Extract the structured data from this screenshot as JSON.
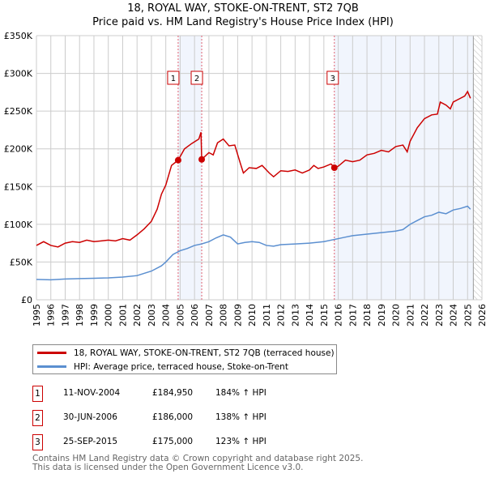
{
  "chart_data": {
    "type": "line",
    "title": "18, ROYAL WAY, STOKE-ON-TRENT, ST2 7QB",
    "subtitle": "Price paid vs. HM Land Registry's House Price Index (HPI)",
    "xlim": [
      1995,
      2026
    ],
    "ylim": [
      0,
      350000
    ],
    "x_ticks": [
      "1995",
      "1996",
      "1997",
      "1998",
      "1999",
      "2000",
      "2001",
      "2002",
      "2003",
      "2004",
      "2005",
      "2006",
      "2007",
      "2008",
      "2009",
      "2010",
      "2011",
      "2012",
      "2013",
      "2014",
      "2015",
      "2016",
      "2017",
      "2018",
      "2019",
      "2020",
      "2021",
      "2022",
      "2023",
      "2024",
      "2025",
      "2026"
    ],
    "y_ticks": [
      {
        "v": 0,
        "label": "£0"
      },
      {
        "v": 50000,
        "label": "£50K"
      },
      {
        "v": 100000,
        "label": "£100K"
      },
      {
        "v": 150000,
        "label": "£150K"
      },
      {
        "v": 200000,
        "label": "£200K"
      },
      {
        "v": 250000,
        "label": "£250K"
      },
      {
        "v": 300000,
        "label": "£300K"
      },
      {
        "v": 350000,
        "label": "£350K"
      }
    ],
    "grid": true,
    "shaded_ranges": [
      [
        2004.86,
        2006.5
      ],
      [
        2015.73,
        2025.4
      ]
    ],
    "hatched_from": 2025.4,
    "series": [
      {
        "name": "18, ROYAL WAY, STOKE-ON-TRENT, ST2 7QB (terraced house)",
        "color": "#cc0000",
        "points": [
          [
            1995,
            72000
          ],
          [
            1995.5,
            77000
          ],
          [
            1996,
            72000
          ],
          [
            1996.5,
            70000
          ],
          [
            1997,
            75000
          ],
          [
            1997.5,
            77000
          ],
          [
            1998,
            76000
          ],
          [
            1998.5,
            79000
          ],
          [
            1999,
            77000
          ],
          [
            1999.5,
            78000
          ],
          [
            2000,
            79000
          ],
          [
            2000.5,
            78000
          ],
          [
            2001,
            81000
          ],
          [
            2001.5,
            79000
          ],
          [
            2002,
            86000
          ],
          [
            2002.5,
            94000
          ],
          [
            2003,
            104000
          ],
          [
            2003.4,
            120000
          ],
          [
            2003.7,
            140000
          ],
          [
            2004,
            152000
          ],
          [
            2004.4,
            178000
          ],
          [
            2004.86,
            184950
          ],
          [
            2005.3,
            200000
          ],
          [
            2005.8,
            207000
          ],
          [
            2006.3,
            213000
          ],
          [
            2006.45,
            222000
          ],
          [
            2006.5,
            186000
          ],
          [
            2007,
            195000
          ],
          [
            2007.3,
            192000
          ],
          [
            2007.6,
            208000
          ],
          [
            2008,
            213000
          ],
          [
            2008.4,
            204000
          ],
          [
            2008.8,
            205000
          ],
          [
            2009.2,
            180000
          ],
          [
            2009.4,
            168000
          ],
          [
            2009.8,
            175000
          ],
          [
            2010.3,
            174000
          ],
          [
            2010.7,
            178000
          ],
          [
            2011.2,
            168000
          ],
          [
            2011.5,
            163000
          ],
          [
            2012,
            171000
          ],
          [
            2012.5,
            170000
          ],
          [
            2013,
            172000
          ],
          [
            2013.5,
            168000
          ],
          [
            2014,
            172000
          ],
          [
            2014.3,
            178000
          ],
          [
            2014.6,
            174000
          ],
          [
            2015,
            176000
          ],
          [
            2015.5,
            180000
          ],
          [
            2015.73,
            175000
          ],
          [
            2016,
            177000
          ],
          [
            2016.5,
            185000
          ],
          [
            2017,
            183000
          ],
          [
            2017.5,
            185000
          ],
          [
            2018,
            192000
          ],
          [
            2018.5,
            194000
          ],
          [
            2019,
            198000
          ],
          [
            2019.5,
            196000
          ],
          [
            2020,
            203000
          ],
          [
            2020.5,
            205000
          ],
          [
            2020.8,
            196000
          ],
          [
            2021,
            210000
          ],
          [
            2021.5,
            228000
          ],
          [
            2022,
            240000
          ],
          [
            2022.5,
            245000
          ],
          [
            2022.9,
            246000
          ],
          [
            2023.1,
            262000
          ],
          [
            2023.5,
            258000
          ],
          [
            2023.8,
            253000
          ],
          [
            2024,
            262000
          ],
          [
            2024.4,
            266000
          ],
          [
            2024.8,
            270000
          ],
          [
            2025.0,
            276000
          ],
          [
            2025.2,
            267000
          ]
        ]
      },
      {
        "name": "HPI: Average price, terraced house, Stoke-on-Trent",
        "color": "#5b8fd0",
        "points": [
          [
            1995,
            27000
          ],
          [
            1996,
            26500
          ],
          [
            1997,
            27500
          ],
          [
            1998,
            28000
          ],
          [
            1999,
            28500
          ],
          [
            2000,
            29000
          ],
          [
            2001,
            30000
          ],
          [
            2002,
            32000
          ],
          [
            2003,
            38000
          ],
          [
            2003.7,
            45000
          ],
          [
            2004,
            50000
          ],
          [
            2004.5,
            60000
          ],
          [
            2005,
            65000
          ],
          [
            2005.5,
            68000
          ],
          [
            2006,
            72000
          ],
          [
            2006.5,
            74000
          ],
          [
            2007,
            77000
          ],
          [
            2007.5,
            82000
          ],
          [
            2008,
            86000
          ],
          [
            2008.5,
            83000
          ],
          [
            2009,
            74000
          ],
          [
            2009.5,
            76000
          ],
          [
            2010,
            77000
          ],
          [
            2010.5,
            76000
          ],
          [
            2011,
            72000
          ],
          [
            2011.5,
            71000
          ],
          [
            2012,
            73000
          ],
          [
            2013,
            74000
          ],
          [
            2014,
            75000
          ],
          [
            2015,
            77000
          ],
          [
            2016,
            81000
          ],
          [
            2016.5,
            83000
          ],
          [
            2017,
            85000
          ],
          [
            2018,
            87000
          ],
          [
            2019,
            89000
          ],
          [
            2020,
            91000
          ],
          [
            2020.5,
            93000
          ],
          [
            2021,
            100000
          ],
          [
            2021.5,
            105000
          ],
          [
            2022,
            110000
          ],
          [
            2022.5,
            112000
          ],
          [
            2023,
            116000
          ],
          [
            2023.5,
            114000
          ],
          [
            2024,
            119000
          ],
          [
            2024.5,
            121000
          ],
          [
            2025,
            124000
          ],
          [
            2025.2,
            120000
          ]
        ]
      }
    ],
    "markers": [
      {
        "label": "1",
        "x": 2004.86,
        "y": 184950
      },
      {
        "label": "2",
        "x": 2006.5,
        "y": 186000
      },
      {
        "label": "3",
        "x": 2015.73,
        "y": 175000
      }
    ],
    "legend_placement": "bottom"
  },
  "transactions": [
    {
      "num": "1",
      "date": "11-NOV-2004",
      "price": "£184,950",
      "hpi": "184% ↑ HPI"
    },
    {
      "num": "2",
      "date": "30-JUN-2006",
      "price": "£186,000",
      "hpi": "138% ↑ HPI"
    },
    {
      "num": "3",
      "date": "25-SEP-2015",
      "price": "£175,000",
      "hpi": "123% ↑ HPI"
    }
  ],
  "footer": {
    "line1": "Contains HM Land Registry data © Crown copyright and database right 2025.",
    "line2": "This data is licensed under the Open Government Licence v3.0."
  }
}
